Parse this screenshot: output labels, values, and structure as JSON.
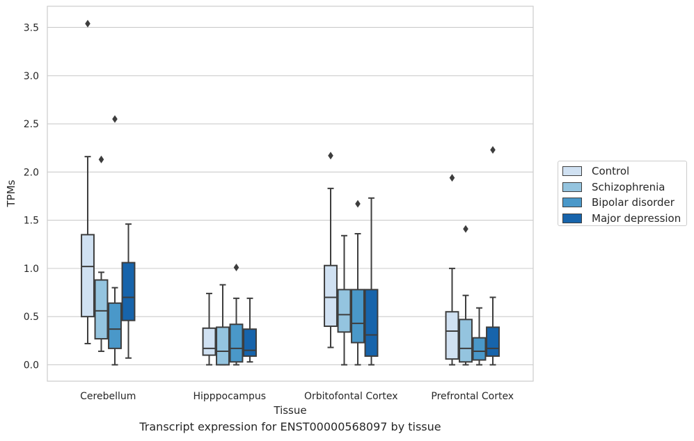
{
  "chart_data": {
    "type": "box",
    "title": "",
    "caption": "Transcript expression for ENST00000568097 by tissue",
    "xlabel": "Tissue",
    "ylabel": "TPMs",
    "ylim": [
      -0.17,
      3.72
    ],
    "yticks": [
      "0.0",
      "0.5",
      "1.0",
      "1.5",
      "2.0",
      "2.5",
      "3.0",
      "3.5"
    ],
    "categories": [
      "Cerebellum",
      "Hipppocampus",
      "Orbitofontal Cortex",
      "Prefrontal Cortex"
    ],
    "grid": "horizontal",
    "legend_position": "right",
    "series": [
      {
        "name": "Control",
        "color": "#d0e1f2",
        "boxes": [
          {
            "whisker_low": 0.22,
            "q1": 0.5,
            "median": 1.02,
            "q3": 1.35,
            "whisker_high": 2.16,
            "outliers": [
              3.54
            ]
          },
          {
            "whisker_low": 0.0,
            "q1": 0.1,
            "median": 0.17,
            "q3": 0.38,
            "whisker_high": 0.74,
            "outliers": []
          },
          {
            "whisker_low": 0.18,
            "q1": 0.4,
            "median": 0.7,
            "q3": 1.03,
            "whisker_high": 1.83,
            "outliers": [
              2.17
            ]
          },
          {
            "whisker_low": 0.0,
            "q1": 0.06,
            "median": 0.35,
            "q3": 0.55,
            "whisker_high": 1.0,
            "outliers": [
              1.94
            ]
          }
        ]
      },
      {
        "name": "Schizophrenia",
        "color": "#94c4df",
        "boxes": [
          {
            "whisker_low": 0.14,
            "q1": 0.27,
            "median": 0.56,
            "q3": 0.88,
            "whisker_high": 0.96,
            "outliers": [
              2.13
            ]
          },
          {
            "whisker_low": 0.0,
            "q1": 0.0,
            "median": 0.14,
            "q3": 0.39,
            "whisker_high": 0.83,
            "outliers": []
          },
          {
            "whisker_low": 0.0,
            "q1": 0.34,
            "median": 0.52,
            "q3": 0.78,
            "whisker_high": 1.34,
            "outliers": []
          },
          {
            "whisker_low": 0.0,
            "q1": 0.03,
            "median": 0.17,
            "q3": 0.47,
            "whisker_high": 0.72,
            "outliers": [
              1.41
            ]
          }
        ]
      },
      {
        "name": "Bipolar disorder",
        "color": "#4a98c9",
        "boxes": [
          {
            "whisker_low": 0.0,
            "q1": 0.17,
            "median": 0.37,
            "q3": 0.64,
            "whisker_high": 0.8,
            "outliers": [
              2.55
            ]
          },
          {
            "whisker_low": 0.0,
            "q1": 0.03,
            "median": 0.17,
            "q3": 0.42,
            "whisker_high": 0.69,
            "outliers": [
              1.01
            ]
          },
          {
            "whisker_low": 0.0,
            "q1": 0.23,
            "median": 0.43,
            "q3": 0.78,
            "whisker_high": 1.36,
            "outliers": [
              1.67
            ]
          },
          {
            "whisker_low": 0.0,
            "q1": 0.05,
            "median": 0.14,
            "q3": 0.28,
            "whisker_high": 0.59,
            "outliers": []
          }
        ]
      },
      {
        "name": "Major depression",
        "color": "#1764ab",
        "boxes": [
          {
            "whisker_low": 0.07,
            "q1": 0.46,
            "median": 0.7,
            "q3": 1.06,
            "whisker_high": 1.46,
            "outliers": []
          },
          {
            "whisker_low": 0.03,
            "q1": 0.09,
            "median": 0.15,
            "q3": 0.37,
            "whisker_high": 0.69,
            "outliers": []
          },
          {
            "whisker_low": 0.0,
            "q1": 0.09,
            "median": 0.31,
            "q3": 0.78,
            "whisker_high": 1.73,
            "outliers": []
          },
          {
            "whisker_low": 0.0,
            "q1": 0.09,
            "median": 0.17,
            "q3": 0.39,
            "whisker_high": 0.7,
            "outliers": [
              2.23
            ]
          }
        ]
      }
    ]
  }
}
